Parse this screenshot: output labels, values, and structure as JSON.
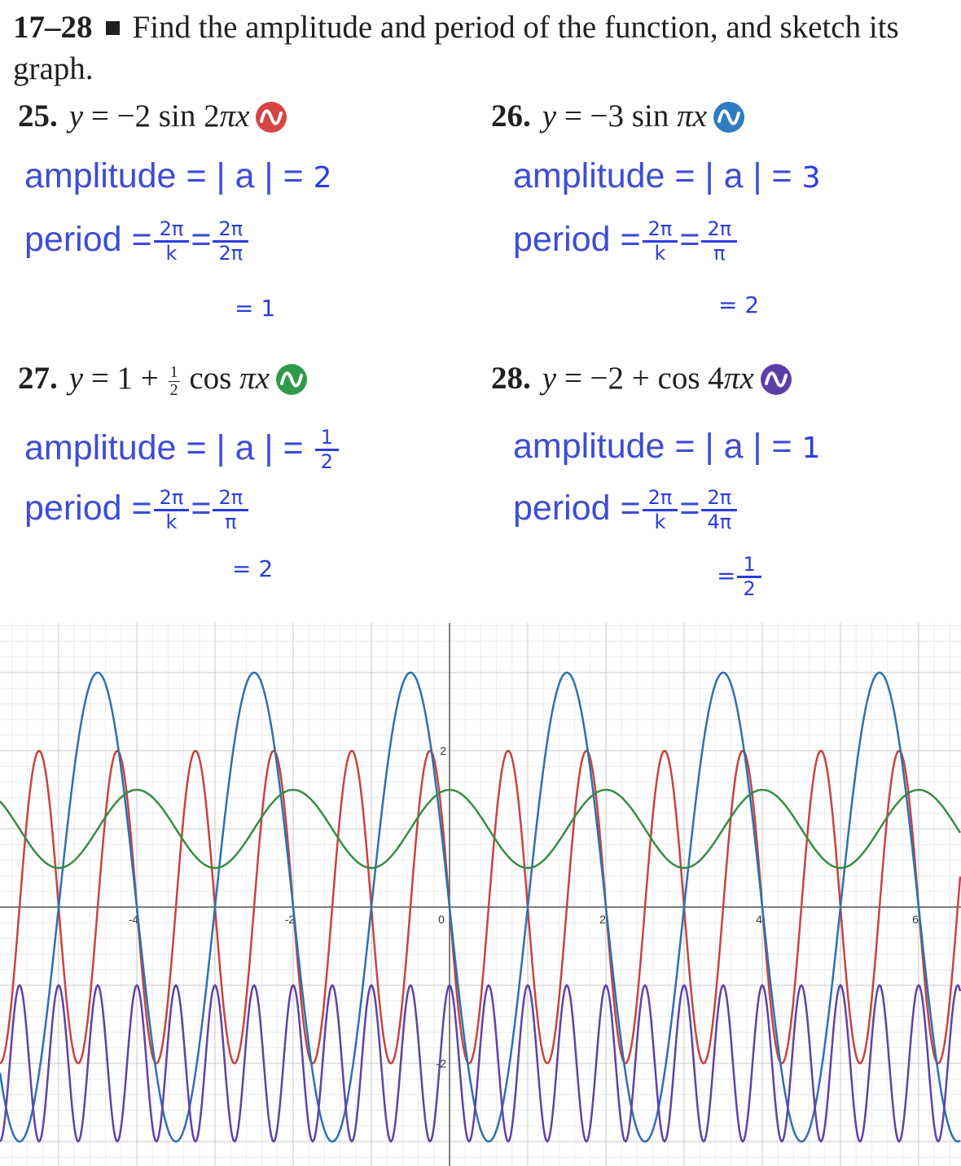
{
  "header": {
    "range": "17–28",
    "instruction": "Find the amplitude and period of the function, and sketch its graph."
  },
  "problems": [
    {
      "number": "25.",
      "lhs": "y",
      "eq": " = −2 sin 2",
      "pi_var": "πx",
      "badge_color": "#d64545",
      "amplitude_label": "amplitude = | a | = ",
      "amplitude_value": "2",
      "period_label": "period =",
      "k_num": "2π",
      "k_den": "k",
      "sub_num": "2π",
      "sub_den": "2π",
      "result": "= 1"
    },
    {
      "number": "26.",
      "lhs": "y",
      "eq": " = −3 sin ",
      "pi_var": "πx",
      "badge_color": "#2f7cc1",
      "amplitude_label": "amplitude = | a | = ",
      "amplitude_value": "3",
      "period_label": "period =",
      "k_num": "2π",
      "k_den": "k",
      "sub_num": "2π",
      "sub_den": "π",
      "result": "= 2"
    },
    {
      "number": "27.",
      "lhs": "y",
      "eq": " = 1 + ",
      "frac_num": "1",
      "frac_den": "2",
      "eq2": " cos ",
      "pi_var": "πx",
      "badge_color": "#2e9a4a",
      "amplitude_label": "amplitude = | a | = ",
      "amplitude_num": "1",
      "amplitude_den": "2",
      "period_label": "period =",
      "k_num": "2π",
      "k_den": "k",
      "sub_num": "2π",
      "sub_den": "π",
      "result": "= 2"
    },
    {
      "number": "28.",
      "lhs": "y",
      "eq": " = −2 + cos 4",
      "pi_var": "πx",
      "badge_color": "#5b3fa8",
      "amplitude_label": "amplitude = | a | = ",
      "amplitude_value": "1",
      "period_label": "period =",
      "k_num": "2π",
      "k_den": "k",
      "sub_num": "2π",
      "sub_den": "4π",
      "result_prefix": "=",
      "result_num": "1",
      "result_den": "2"
    }
  ],
  "chart_data": {
    "type": "line",
    "xlim": [
      -5.7,
      6.6
    ],
    "ylim": [
      -3.2,
      3.6
    ],
    "grid": true,
    "x_tick_labels": [
      "-4",
      "-2",
      "0",
      "2",
      "4",
      "6"
    ],
    "y_tick_labels": [
      "2",
      "-2"
    ],
    "series": [
      {
        "function": "y = -2 sin(2πx)",
        "amplitude": 2,
        "offset": 0,
        "frequency": 1,
        "phase": "sin",
        "color": "#c74440"
      },
      {
        "function": "y = -3 sin(πx)",
        "amplitude": 3,
        "offset": 0,
        "frequency": 0.5,
        "phase": "sin",
        "color": "#2d70b3"
      },
      {
        "function": "y = 1 + (1/2) cos(πx)",
        "amplitude": 0.5,
        "offset": 1,
        "frequency": 0.5,
        "phase": "cos",
        "color": "#388c46"
      },
      {
        "function": "y = -2 + cos(4πx)",
        "amplitude": 1,
        "offset": -2,
        "frequency": 2,
        "phase": "cos",
        "color": "#6042a6"
      }
    ]
  }
}
